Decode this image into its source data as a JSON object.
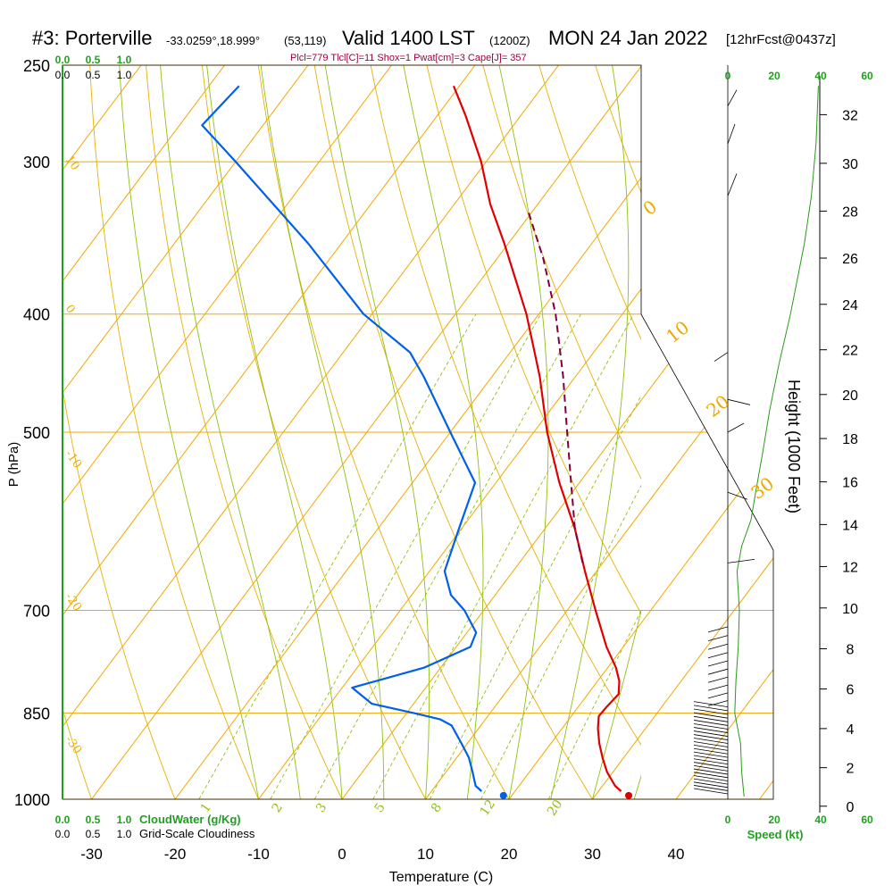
{
  "header": {
    "station": "#3: Porterville",
    "coords": "-33.0259°,18.999°",
    "grid": "(53,119)",
    "valid": "Valid 1400 LST",
    "utc": "(1200Z)",
    "date": "MON 24 Jan 2022",
    "forecast": "[12hrFcst@0437z]"
  },
  "indices": {
    "text": "Plcl=779 Tlcl[C]=11 Shox=1 Pwat[cm]=3 Cape[J]= 357"
  },
  "axes": {
    "xlabel": "Temperature (C)",
    "ylabel": "P (hPa)",
    "height_label": "Height (1000 Feet)",
    "speed_label": "Speed (kt)",
    "cloudwater_label": "CloudWater (g/Kg)",
    "cloudiness_label": "Grid-Scale Cloudiness"
  },
  "colors": {
    "isotherm": "#f0a800",
    "dry_adiabat": "#e8b000",
    "moist_adiabat": "#90c010",
    "mixing_ratio": "#90c010",
    "temperature": "#e00000",
    "dewpoint": "#0060e8",
    "parcel": "#800040",
    "wind": "#2a9a1a",
    "axis_green": "#20a020",
    "header_index": "#a0003c"
  },
  "chart_data": {
    "type": "line",
    "title": "#3: Porterville Skew-T Log-P sounding, Valid 1400 LST MON 24 Jan 2022",
    "xlabel": "Temperature (C)",
    "ylabel": "P (hPa)",
    "x_ticks": [
      "-30",
      "-20",
      "-10",
      "0",
      "10",
      "20",
      "30",
      "40"
    ],
    "x_tick_values": [
      -30,
      -20,
      -10,
      0,
      10,
      20,
      30,
      40
    ],
    "p_ticks": [
      "250",
      "300",
      "400",
      "500",
      "700",
      "850",
      "1000"
    ],
    "p_tick_values": [
      250,
      300,
      400,
      500,
      700,
      850,
      1000
    ],
    "height_ticks": [
      "0",
      "2",
      "4",
      "6",
      "8",
      "10",
      "12",
      "14",
      "16",
      "18",
      "20",
      "22",
      "24",
      "26",
      "28",
      "30",
      "32"
    ],
    "height_tick_values": [
      0,
      2,
      4,
      6,
      8,
      10,
      12,
      14,
      16,
      18,
      20,
      22,
      24,
      26,
      28,
      30,
      32
    ],
    "isotherm_labels": [
      {
        "value": 0,
        "text": "0"
      },
      {
        "value": 10,
        "text": "10"
      },
      {
        "value": 20,
        "text": "20"
      },
      {
        "value": 30,
        "text": "30"
      }
    ],
    "dry_adiabat_labels": [
      {
        "value": 10,
        "text": "10"
      },
      {
        "value": 0,
        "text": "0"
      },
      {
        "value": -10,
        "text": "-10"
      },
      {
        "value": -20,
        "text": "-20"
      },
      {
        "value": -30,
        "text": "-30"
      }
    ],
    "mixing_ratio_labels": [
      "1",
      "2",
      "3",
      "5",
      "8",
      "12",
      "20"
    ],
    "mixing_ratio_values": [
      1,
      2,
      3,
      5,
      8,
      12,
      20
    ],
    "top_scale_cloudwater": [
      "0.0",
      "0.5",
      "1.0"
    ],
    "top_scale_cloudiness": [
      "0.0",
      "0.5",
      "1.0"
    ],
    "bottom_scale_cloudwater": [
      "0.0",
      "0.5",
      "1.0"
    ],
    "bottom_scale_cloudiness": [
      "0.0",
      "0.5",
      "1.0"
    ],
    "speed_ticks": [
      "0",
      "20",
      "40",
      "60"
    ],
    "speed_tick_values": [
      0,
      20,
      40,
      60
    ],
    "series": [
      {
        "name": "Temperature",
        "points": [
          {
            "p": 985,
            "t": 32.7
          },
          {
            "p": 975,
            "t": 31.5
          },
          {
            "p": 950,
            "t": 29.3
          },
          {
            "p": 925,
            "t": 27.5
          },
          {
            "p": 900,
            "t": 25.8
          },
          {
            "p": 875,
            "t": 24.3
          },
          {
            "p": 855,
            "t": 23.3
          },
          {
            "p": 840,
            "t": 23.4
          },
          {
            "p": 820,
            "t": 23.7
          },
          {
            "p": 800,
            "t": 22.6
          },
          {
            "p": 780,
            "t": 21.0
          },
          {
            "p": 750,
            "t": 18.0
          },
          {
            "p": 700,
            "t": 13.4
          },
          {
            "p": 650,
            "t": 8.6
          },
          {
            "p": 600,
            "t": 3.6
          },
          {
            "p": 550,
            "t": -2.4
          },
          {
            "p": 500,
            "t": -8.4
          },
          {
            "p": 450,
            "t": -14.3
          },
          {
            "p": 400,
            "t": -21.5
          },
          {
            "p": 350,
            "t": -30.5
          },
          {
            "p": 325,
            "t": -35.7
          },
          {
            "p": 300,
            "t": -40.6
          },
          {
            "p": 275,
            "t": -46.6
          },
          {
            "p": 260,
            "t": -50.7
          }
        ]
      },
      {
        "name": "Dewpoint",
        "points": [
          {
            "p": 985,
            "t": 16.0
          },
          {
            "p": 975,
            "t": 14.8
          },
          {
            "p": 950,
            "t": 13.2
          },
          {
            "p": 925,
            "t": 11.5
          },
          {
            "p": 900,
            "t": 9.3
          },
          {
            "p": 870,
            "t": 6.5
          },
          {
            "p": 860,
            "t": 4.6
          },
          {
            "p": 850,
            "t": 0.9
          },
          {
            "p": 835,
            "t": -5.0
          },
          {
            "p": 810,
            "t": -8.8
          },
          {
            "p": 780,
            "t": -2.0
          },
          {
            "p": 750,
            "t": 1.7
          },
          {
            "p": 730,
            "t": 1.1
          },
          {
            "p": 700,
            "t": -2.3
          },
          {
            "p": 680,
            "t": -5.3
          },
          {
            "p": 650,
            "t": -8.2
          },
          {
            "p": 600,
            "t": -10.3
          },
          {
            "p": 550,
            "t": -12.5
          },
          {
            "p": 500,
            "t": -20.0
          },
          {
            "p": 450,
            "t": -28.2
          },
          {
            "p": 430,
            "t": -32.0
          },
          {
            "p": 400,
            "t": -41.0
          },
          {
            "p": 350,
            "t": -54.0
          },
          {
            "p": 300,
            "t": -70.0
          },
          {
            "p": 280,
            "t": -77.3
          },
          {
            "p": 260,
            "t": -76.4
          }
        ]
      },
      {
        "name": "Parcel",
        "points": [
          {
            "p": 640,
            "t": 7.6
          },
          {
            "p": 600,
            "t": 3.6
          },
          {
            "p": 550,
            "t": -1.0
          },
          {
            "p": 500,
            "t": -6.0
          },
          {
            "p": 450,
            "t": -11.5
          },
          {
            "p": 400,
            "t": -18.0
          },
          {
            "p": 360,
            "t": -24.5
          },
          {
            "p": 330,
            "t": -30.4
          }
        ]
      }
    ],
    "surface_temperature": 34,
    "surface_dewpoint": 19
  }
}
